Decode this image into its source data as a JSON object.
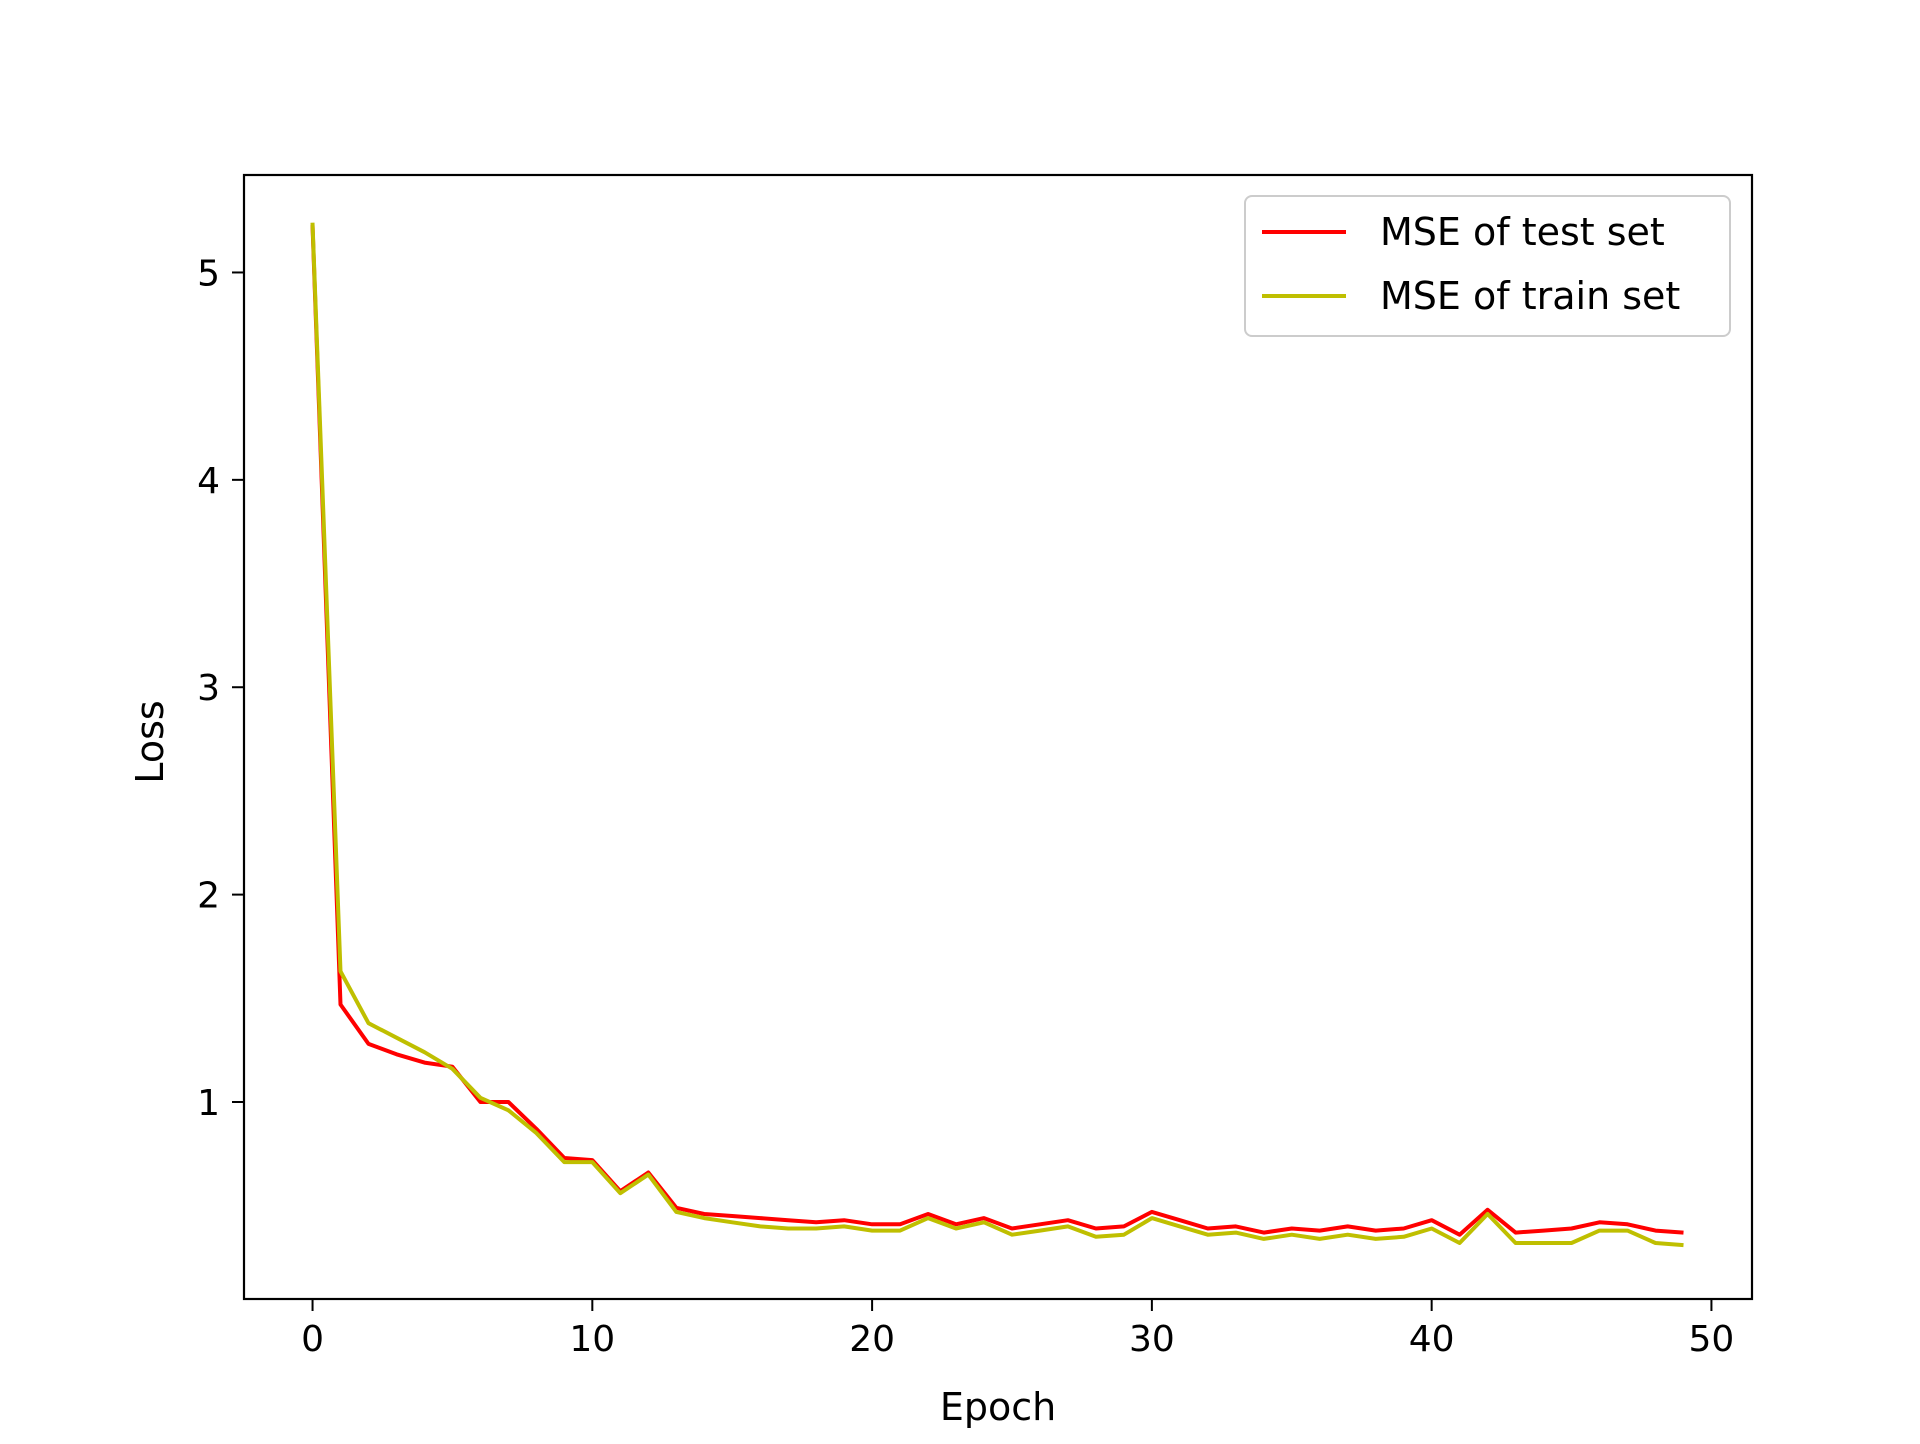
{
  "chart_data": {
    "type": "line",
    "title": "",
    "xlabel": "Epoch",
    "ylabel": "Loss",
    "xlim": [
      -2.45,
      51.45
    ],
    "ylim": [
      0.05,
      5.47
    ],
    "grid": false,
    "legend": "top-right",
    "x_ticks": [
      0,
      10,
      20,
      30,
      40,
      50
    ],
    "y_ticks": [
      1,
      2,
      3,
      4,
      5
    ],
    "x": [
      0,
      1,
      2,
      3,
      4,
      5,
      6,
      7,
      8,
      9,
      10,
      11,
      12,
      13,
      14,
      15,
      16,
      17,
      18,
      19,
      20,
      21,
      22,
      23,
      24,
      25,
      26,
      27,
      28,
      29,
      30,
      31,
      32,
      33,
      34,
      35,
      36,
      37,
      38,
      39,
      40,
      41,
      42,
      43,
      44,
      45,
      46,
      47,
      48,
      49
    ],
    "series": [
      {
        "name": "MSE of test set",
        "color": "#ff0000",
        "values": [
          5.23,
          1.47,
          1.28,
          1.23,
          1.19,
          1.17,
          1.0,
          1.0,
          0.87,
          0.73,
          0.72,
          0.57,
          0.66,
          0.49,
          0.46,
          0.45,
          0.44,
          0.43,
          0.42,
          0.43,
          0.41,
          0.41,
          0.46,
          0.41,
          0.44,
          0.39,
          0.41,
          0.43,
          0.39,
          0.4,
          0.47,
          0.43,
          0.39,
          0.4,
          0.37,
          0.39,
          0.38,
          0.4,
          0.38,
          0.39,
          0.43,
          0.36,
          0.48,
          0.37,
          0.38,
          0.39,
          0.42,
          0.41,
          0.38,
          0.37
        ]
      },
      {
        "name": "MSE of train set",
        "color": "#bfbf00",
        "values": [
          5.24,
          1.63,
          1.38,
          1.31,
          1.24,
          1.16,
          1.02,
          0.96,
          0.85,
          0.71,
          0.71,
          0.56,
          0.65,
          0.47,
          0.44,
          0.42,
          0.4,
          0.39,
          0.39,
          0.4,
          0.38,
          0.38,
          0.44,
          0.39,
          0.42,
          0.36,
          0.38,
          0.4,
          0.35,
          0.36,
          0.44,
          0.4,
          0.36,
          0.37,
          0.34,
          0.36,
          0.34,
          0.36,
          0.34,
          0.35,
          0.39,
          0.32,
          0.46,
          0.32,
          0.32,
          0.32,
          0.38,
          0.38,
          0.32,
          0.31
        ]
      }
    ]
  }
}
